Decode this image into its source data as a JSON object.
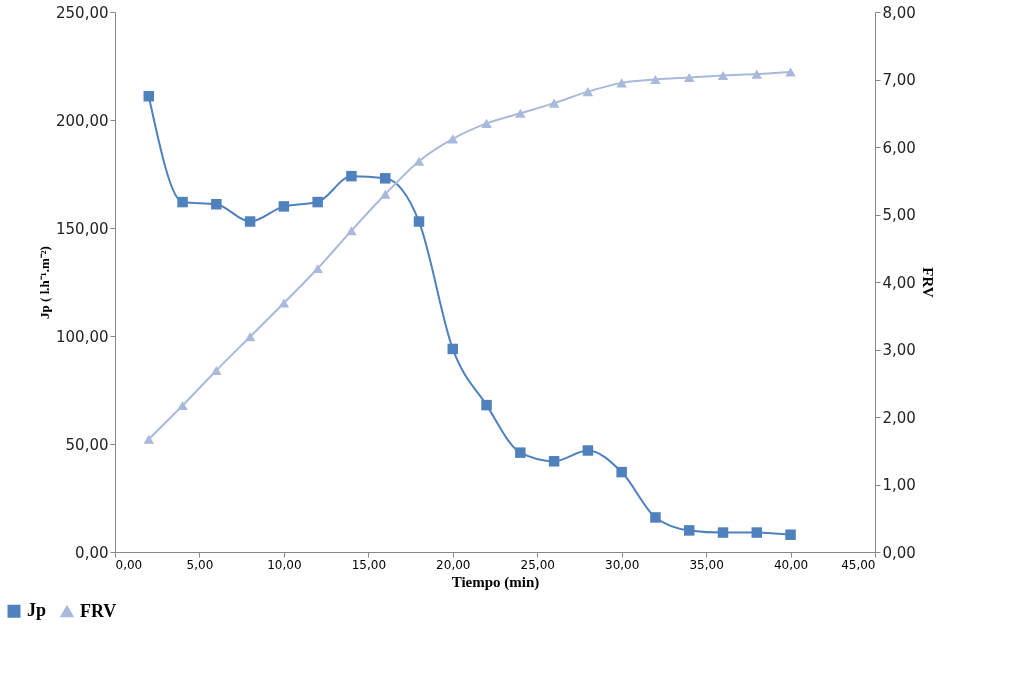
{
  "chart_data": {
    "type": "line",
    "xlabel": "Tiempo (min)",
    "ylabel": "Jp ( l.h⁻¹.m⁻²)",
    "y2label": "FRV",
    "x": [
      2,
      4,
      6,
      8,
      10,
      12,
      14,
      16,
      18,
      20,
      22,
      24,
      26,
      28,
      30,
      32,
      34,
      36,
      38,
      40
    ],
    "series": [
      {
        "name": "Jp",
        "color": "#4f81bd",
        "marker": "square",
        "values": [
          211,
          162,
          161,
          153,
          160,
          162,
          174,
          173,
          153,
          94,
          68,
          46,
          42,
          47,
          37,
          16,
          10,
          9,
          9,
          8
        ]
      },
      {
        "name": "FRV",
        "color": "#a8b9db",
        "marker": "triangle",
        "axis": "y2",
        "values": [
          1.67,
          2.17,
          2.69,
          3.19,
          3.69,
          4.2,
          4.76,
          5.3,
          5.79,
          6.12,
          6.35,
          6.5,
          6.65,
          6.82,
          6.95,
          7.0,
          7.03,
          7.06,
          7.08,
          7.11
        ]
      }
    ],
    "xlim": [
      0,
      45
    ],
    "ylim": [
      0,
      250
    ],
    "y2lim": [
      0,
      8
    ],
    "xticks": [
      {
        "value": 0,
        "label": "0,00"
      },
      {
        "value": 5,
        "label": "5,00"
      },
      {
        "value": 10,
        "label": "10,00"
      },
      {
        "value": 15,
        "label": "15,00"
      },
      {
        "value": 20,
        "label": "20,00"
      },
      {
        "value": 25,
        "label": "25,00"
      },
      {
        "value": 30,
        "label": "30,00"
      },
      {
        "value": 35,
        "label": "35,00"
      },
      {
        "value": 40,
        "label": "40,00"
      },
      {
        "value": 45,
        "label": "45,00"
      }
    ],
    "yticks": [
      {
        "value": 0,
        "label": "0,00"
      },
      {
        "value": 50,
        "label": "50,00"
      },
      {
        "value": 100,
        "label": "100,00"
      },
      {
        "value": 150,
        "label": "150,00"
      },
      {
        "value": 200,
        "label": "200,00"
      },
      {
        "value": 250,
        "label": "250,00"
      }
    ],
    "y2ticks": [
      {
        "value": 0,
        "label": "0,00"
      },
      {
        "value": 1,
        "label": "1,00"
      },
      {
        "value": 2,
        "label": "2,00"
      },
      {
        "value": 3,
        "label": "3,00"
      },
      {
        "value": 4,
        "label": "4,00"
      },
      {
        "value": 5,
        "label": "5,00"
      },
      {
        "value": 6,
        "label": "6,00"
      },
      {
        "value": 7,
        "label": "7,00"
      },
      {
        "value": 8,
        "label": "8,00"
      }
    ],
    "grid": false,
    "legend": "bottom left",
    "line_style": "solid"
  }
}
